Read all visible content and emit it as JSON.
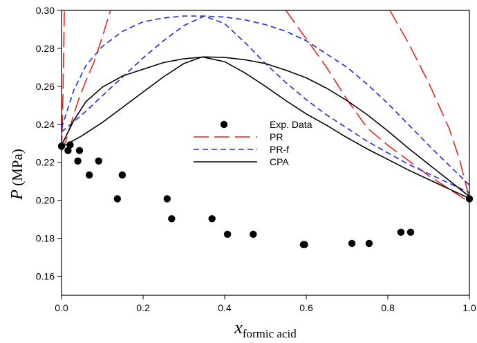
{
  "chart_data": {
    "type": "scatter",
    "x_axis": {
      "label_main": "x",
      "label_subscript": "formic acid",
      "range": [
        0.0,
        1.0
      ],
      "ticks": [
        0.0,
        0.2,
        0.4,
        0.6,
        0.8,
        1.0
      ],
      "tick_labels": [
        "0.0",
        "0.2",
        "0.4",
        "0.6",
        "0.8",
        "1.0"
      ]
    },
    "y_axis": {
      "label_main": "P",
      "label_unit": " (MPa)",
      "range": [
        0.15,
        0.3
      ],
      "ticks": [
        0.16,
        0.18,
        0.2,
        0.22,
        0.24,
        0.26,
        0.28,
        0.3
      ],
      "tick_labels": [
        "0.16",
        "0.18",
        "0.20",
        "0.22",
        "0.24",
        "0.26",
        "0.28",
        "0.30"
      ]
    },
    "grid": false,
    "legend_position": "center",
    "legend": [
      {
        "label": "Exp. Data",
        "style": "marker",
        "color": "#000000"
      },
      {
        "label": "PR",
        "style": "long-dash",
        "color": "#e8211c"
      },
      {
        "label": "PR-f",
        "style": "short-dash",
        "color": "#1c28e8"
      },
      {
        "label": "CPA",
        "style": "solid",
        "color": "#000000"
      }
    ],
    "scatter": {
      "name": "Exp. Data",
      "color": "#000000",
      "points": [
        {
          "x": 0.0,
          "y": 0.2285
        },
        {
          "x": 0.016,
          "y": 0.2262
        },
        {
          "x": 0.021,
          "y": 0.2292
        },
        {
          "x": 0.04,
          "y": 0.2207
        },
        {
          "x": 0.044,
          "y": 0.2262
        },
        {
          "x": 0.068,
          "y": 0.2133
        },
        {
          "x": 0.091,
          "y": 0.2207
        },
        {
          "x": 0.137,
          "y": 0.2008
        },
        {
          "x": 0.149,
          "y": 0.2133
        },
        {
          "x": 0.259,
          "y": 0.2008
        },
        {
          "x": 0.27,
          "y": 0.1903
        },
        {
          "x": 0.369,
          "y": 0.1903
        },
        {
          "x": 0.407,
          "y": 0.1821
        },
        {
          "x": 0.47,
          "y": 0.1821
        },
        {
          "x": 0.593,
          "y": 0.1767
        },
        {
          "x": 0.596,
          "y": 0.1767
        },
        {
          "x": 0.712,
          "y": 0.1773
        },
        {
          "x": 0.754,
          "y": 0.1773
        },
        {
          "x": 0.832,
          "y": 0.1832
        },
        {
          "x": 0.856,
          "y": 0.1832
        },
        {
          "x": 1.0,
          "y": 0.2008
        }
      ]
    },
    "series": [
      {
        "name": "PR",
        "color": "#e8211c",
        "dash": "long",
        "segments": [
          [
            [
              0.0,
              0.226
            ],
            [
              0.002,
              0.24
            ],
            [
              0.004,
              0.262
            ],
            [
              0.006,
              0.288
            ],
            [
              0.007,
              0.3
            ]
          ],
          [
            [
              0.0,
              0.226
            ],
            [
              0.01,
              0.231
            ],
            [
              0.02,
              0.238
            ],
            [
              0.04,
              0.252
            ],
            [
              0.06,
              0.263
            ],
            [
              0.08,
              0.273
            ],
            [
              0.1,
              0.286
            ],
            [
              0.12,
              0.3
            ]
          ],
          [
            [
              0.55,
              0.3
            ],
            [
              0.6,
              0.285
            ],
            [
              0.65,
              0.27
            ],
            [
              0.7,
              0.253
            ],
            [
              0.75,
              0.238
            ],
            [
              0.8,
              0.229
            ],
            [
              0.85,
              0.221
            ],
            [
              0.9,
              0.213
            ],
            [
              0.95,
              0.206
            ],
            [
              1.0,
              0.199
            ]
          ],
          [
            [
              0.805,
              0.3
            ],
            [
              0.85,
              0.283
            ],
            [
              0.9,
              0.262
            ],
            [
              0.95,
              0.238
            ],
            [
              0.975,
              0.222
            ],
            [
              1.0,
              0.201
            ]
          ]
        ]
      },
      {
        "name": "PR-f",
        "color": "#1c28e8",
        "dash": "short",
        "segments": [
          [
            [
              0.0,
              0.238
            ],
            [
              0.03,
              0.258
            ],
            [
              0.06,
              0.271
            ],
            [
              0.1,
              0.281
            ],
            [
              0.15,
              0.289
            ],
            [
              0.2,
              0.294
            ],
            [
              0.25,
              0.296
            ],
            [
              0.3,
              0.297
            ],
            [
              0.35,
              0.297
            ],
            [
              0.4,
              0.2965
            ],
            [
              0.45,
              0.295
            ],
            [
              0.5,
              0.2925
            ],
            [
              0.55,
              0.289
            ],
            [
              0.6,
              0.284
            ],
            [
              0.65,
              0.277
            ],
            [
              0.7,
              0.27
            ],
            [
              0.75,
              0.261
            ],
            [
              0.8,
              0.251
            ],
            [
              0.85,
              0.24
            ],
            [
              0.9,
              0.229
            ],
            [
              0.95,
              0.2185
            ],
            [
              1.0,
              0.208
            ]
          ],
          [
            [
              0.0,
              0.236
            ],
            [
              0.05,
              0.245
            ],
            [
              0.1,
              0.255
            ],
            [
              0.15,
              0.265
            ],
            [
              0.2,
              0.275
            ],
            [
              0.25,
              0.284
            ],
            [
              0.3,
              0.292
            ],
            [
              0.35,
              0.297
            ],
            [
              0.4,
              0.293
            ],
            [
              0.45,
              0.283
            ],
            [
              0.5,
              0.272
            ],
            [
              0.55,
              0.262
            ],
            [
              0.6,
              0.253
            ],
            [
              0.65,
              0.245
            ],
            [
              0.7,
              0.238
            ],
            [
              0.75,
              0.231
            ],
            [
              0.8,
              0.225
            ],
            [
              0.85,
              0.219
            ],
            [
              0.9,
              0.214
            ],
            [
              0.95,
              0.209
            ],
            [
              1.0,
              0.204
            ]
          ]
        ]
      },
      {
        "name": "CPA",
        "color": "#000000",
        "dash": "solid",
        "segments": [
          [
            [
              0.0,
              0.229
            ],
            [
              0.03,
              0.242
            ],
            [
              0.06,
              0.252
            ],
            [
              0.1,
              0.2595
            ],
            [
              0.15,
              0.2655
            ],
            [
              0.2,
              0.269
            ],
            [
              0.25,
              0.2725
            ],
            [
              0.3,
              0.2745
            ],
            [
              0.35,
              0.2755
            ],
            [
              0.4,
              0.2752
            ],
            [
              0.45,
              0.274
            ],
            [
              0.5,
              0.272
            ],
            [
              0.55,
              0.2685
            ],
            [
              0.6,
              0.2645
            ],
            [
              0.65,
              0.259
            ],
            [
              0.7,
              0.2525
            ],
            [
              0.75,
              0.245
            ],
            [
              0.8,
              0.2365
            ],
            [
              0.85,
              0.2275
            ],
            [
              0.9,
              0.219
            ],
            [
              0.95,
              0.2105
            ],
            [
              1.0,
              0.202
            ]
          ],
          [
            [
              0.0,
              0.228
            ],
            [
              0.05,
              0.234
            ],
            [
              0.1,
              0.241
            ],
            [
              0.15,
              0.249
            ],
            [
              0.2,
              0.257
            ],
            [
              0.25,
              0.265
            ],
            [
              0.3,
              0.272
            ],
            [
              0.345,
              0.2755
            ],
            [
              0.4,
              0.273
            ],
            [
              0.45,
              0.267
            ],
            [
              0.5,
              0.26
            ],
            [
              0.55,
              0.2525
            ],
            [
              0.6,
              0.2455
            ],
            [
              0.65,
              0.2395
            ],
            [
              0.7,
              0.233
            ],
            [
              0.75,
              0.227
            ],
            [
              0.8,
              0.2215
            ],
            [
              0.85,
              0.216
            ],
            [
              0.9,
              0.211
            ],
            [
              0.95,
              0.206
            ],
            [
              1.0,
              0.201
            ]
          ]
        ]
      }
    ]
  }
}
